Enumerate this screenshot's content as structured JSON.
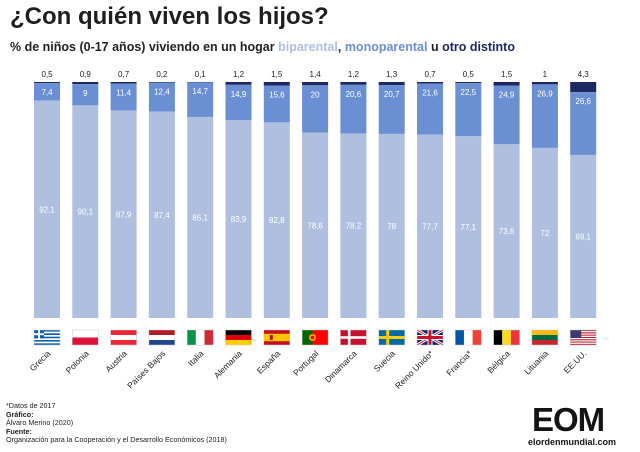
{
  "header": {
    "title": "¿Con quién viven los hijos?",
    "subtitle_prefix": "% de niños (0-17 años) viviendo en un hogar ",
    "kw_biparental": "biparental",
    "sep1": ", ",
    "kw_monoparental": "monoparental",
    "sep2": " u ",
    "kw_otro": "otro distinto"
  },
  "colors": {
    "biparental": "#aebfe0",
    "monoparental": "#6a8fd3",
    "otro": "#1d2760"
  },
  "chart_data": {
    "type": "bar",
    "stacked": true,
    "ylim": [
      0,
      100
    ],
    "categories": [
      "Grecia",
      "Polonia",
      "Austria",
      "Países Bajos",
      "Italia",
      "Alemania",
      "España",
      "Portugal",
      "Dinamarca",
      "Suecia",
      "Reino Unido*",
      "Francia*",
      "Bélgica",
      "Lituania",
      "EE.UU."
    ],
    "series": [
      {
        "name": "biparental",
        "values": [
          "92,1",
          "90,1",
          "87,9",
          "87,4",
          "85,1",
          "83,9",
          "82,8",
          "78,6",
          "78,2",
          "78",
          "77,7",
          "77,1",
          "73,6",
          "72",
          "69,1"
        ]
      },
      {
        "name": "monoparental",
        "values": [
          "7,4",
          "9",
          "11,4",
          "12,4",
          "14,7",
          "14,9",
          "15,6",
          "20",
          "20,6",
          "20,7",
          "21,6",
          "22,5",
          "24,9",
          "26,9",
          "26,6"
        ]
      },
      {
        "name": "otro distinto",
        "values": [
          "0,5",
          "0,9",
          "0,7",
          "0,2",
          "0,1",
          "1,2",
          "1,5",
          "1,4",
          "1,2",
          "1,3",
          "0,7",
          "0,5",
          "1,5",
          "1",
          "4,3"
        ]
      }
    ],
    "flags": [
      "flag-greece-icon",
      "flag-poland-icon",
      "flag-austria-icon",
      "flag-netherlands-icon",
      "flag-italy-icon",
      "flag-germany-icon",
      "flag-spain-icon",
      "flag-portugal-icon",
      "flag-denmark-icon",
      "flag-sweden-icon",
      "flag-uk-icon",
      "flag-france-icon",
      "flag-belgium-icon",
      "flag-lithuania-icon",
      "flag-usa-icon"
    ]
  },
  "notes": {
    "note": "*Datos de 2017",
    "grafico_label": "Gráfico:",
    "grafico_value": "Álvaro Merino (2020)",
    "fuente_label": "Fuente:",
    "fuente_value": "Organización para la Cooperación y el Desarrollo Económicos (2018)"
  },
  "logo": {
    "mark": "EOM",
    "url": "elordenmundial.com"
  }
}
